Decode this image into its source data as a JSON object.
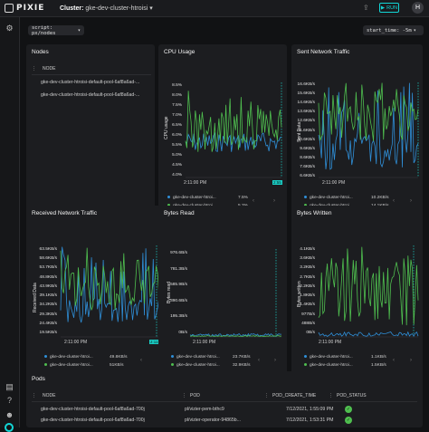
{
  "app": {
    "logo": "PIXIE",
    "cluster_label": "Cluster:",
    "cluster_name": "gke-dev-cluster-htroisi",
    "run_label": "RUN",
    "avatar": "H"
  },
  "controls": {
    "script": "script: px/nodes",
    "start_time": "start_time: -5m"
  },
  "icons": {
    "settings": "gear-icon",
    "docs": "docs-icon",
    "help": "help-icon",
    "profile": "profile-icon",
    "logo": "pixie-logo"
  },
  "colors": {
    "accent": "#12d6d6",
    "series_green": "#4fbf4f",
    "series_blue": "#2f8fd8"
  },
  "nodes": {
    "title": "Nodes",
    "column": "NODE",
    "rows": [
      "gke-dev-cluster-htroisi-default-pool-6af8a6ad-...",
      "gke-dev-cluster-htroisi-default-pool-6af8a6ad-..."
    ]
  },
  "cpu": {
    "title": "CPU Usage",
    "ylabel": "CPU usage",
    "ticks": [
      "8.5%",
      "8.0%",
      "7.5%",
      "7.0%",
      "6.5%",
      "6.0%",
      "5.5%",
      "5.0%",
      "4.5%",
      "4.0%"
    ],
    "x_start": "2:11:00 PM",
    "x_end": "2:55",
    "legend": [
      {
        "name": "gke-dev-cluster-htroi...",
        "value": "7.5%"
      },
      {
        "name": "gke-dev-cluster-htroi...",
        "value": "5.2%"
      }
    ]
  },
  "sent": {
    "title": "Sent Network Traffic",
    "ylabel": "Sent Data",
    "ticks": [
      "16.6KB/s",
      "15.6KB/s",
      "14.6KB/s",
      "13.6KB/s",
      "12.6KB/s",
      "11.6KB/s",
      "10.6KB/s",
      "9.6KB/s",
      "8.6KB/s",
      "7.6KB/s",
      "6.6KB/s"
    ],
    "x_start": "2:11:00 PM",
    "x_end": "2:11:30",
    "legend": [
      {
        "name": "gke-dev-cluster-htroi...",
        "value": "10.2KB/s"
      },
      {
        "name": "gke-dev-cluster-htroi...",
        "value": "14.1KB/s"
      }
    ]
  },
  "recv": {
    "title": "Received Network Traffic",
    "ylabel": "Received Data",
    "ticks": [
      "63.5KB/s",
      "58.6KB/s",
      "53.7KB/s",
      "48.8KB/s",
      "43.9KB/s",
      "39.1KB/s",
      "34.2KB/s",
      "29.3KB/s",
      "24.4KB/s",
      "19.5KB/s"
    ],
    "x_start": "2:11:00 PM",
    "x_end": "2:11:30",
    "legend": [
      {
        "name": "gke-dev-cluster-htroi...",
        "value": "49.8KB/s"
      },
      {
        "name": "gke-dev-cluster-htroi...",
        "value": "51KB/s"
      }
    ]
  },
  "bytes_read": {
    "title": "Bytes Read",
    "ylabel": "Bytes read",
    "ticks": [
      "976.6B/s",
      "781.3B/s",
      "585.9B/s",
      "390.6B/s",
      "195.3B/s",
      "0B/s"
    ],
    "x_start": "2:11:00 PM",
    "x_end": "2:11:30",
    "legend": [
      {
        "name": "gke-dev-cluster-htroi...",
        "value": "23.7KB/s"
      },
      {
        "name": "gke-dev-cluster-htroi...",
        "value": "32.9KB/s"
      }
    ]
  },
  "bytes_written": {
    "title": "Bytes Written",
    "ylabel": "Bytes written",
    "ticks": [
      "4.1KB/s",
      "3.6KB/s",
      "3.2KB/s",
      "2.7KB/s",
      "2.2KB/s",
      "1.8KB/s",
      "1.4KB/s",
      "977B/s",
      "488B/s",
      "0B/s"
    ],
    "x_start": "2:11:00 PM",
    "x_end": "2:11:30",
    "legend": [
      {
        "name": "gke-dev-cluster-htroi...",
        "value": "1.1KB/s"
      },
      {
        "name": "gke-dev-cluster-htroi...",
        "value": "1.5KB/s"
      }
    ]
  },
  "pods": {
    "title": "Pods",
    "columns": [
      "NODE",
      "POD",
      "POD_CREATE_TIME",
      "POD_STATUS"
    ],
    "rows": [
      {
        "node": "gke-dev-cluster-htroisi-default-pool-6af8a6ad-700j",
        "pod": "pl/vizier-pem-bthc9",
        "time": "7/12/2021, 1:55:09 PM",
        "status": "✓"
      },
      {
        "node": "gke-dev-cluster-htroisi-default-pool-6af8a6ad-700j",
        "pod": "pl/vizier-operator-94865b...",
        "time": "7/12/2021, 1:53:31 PM",
        "status": "✓"
      }
    ]
  }
}
